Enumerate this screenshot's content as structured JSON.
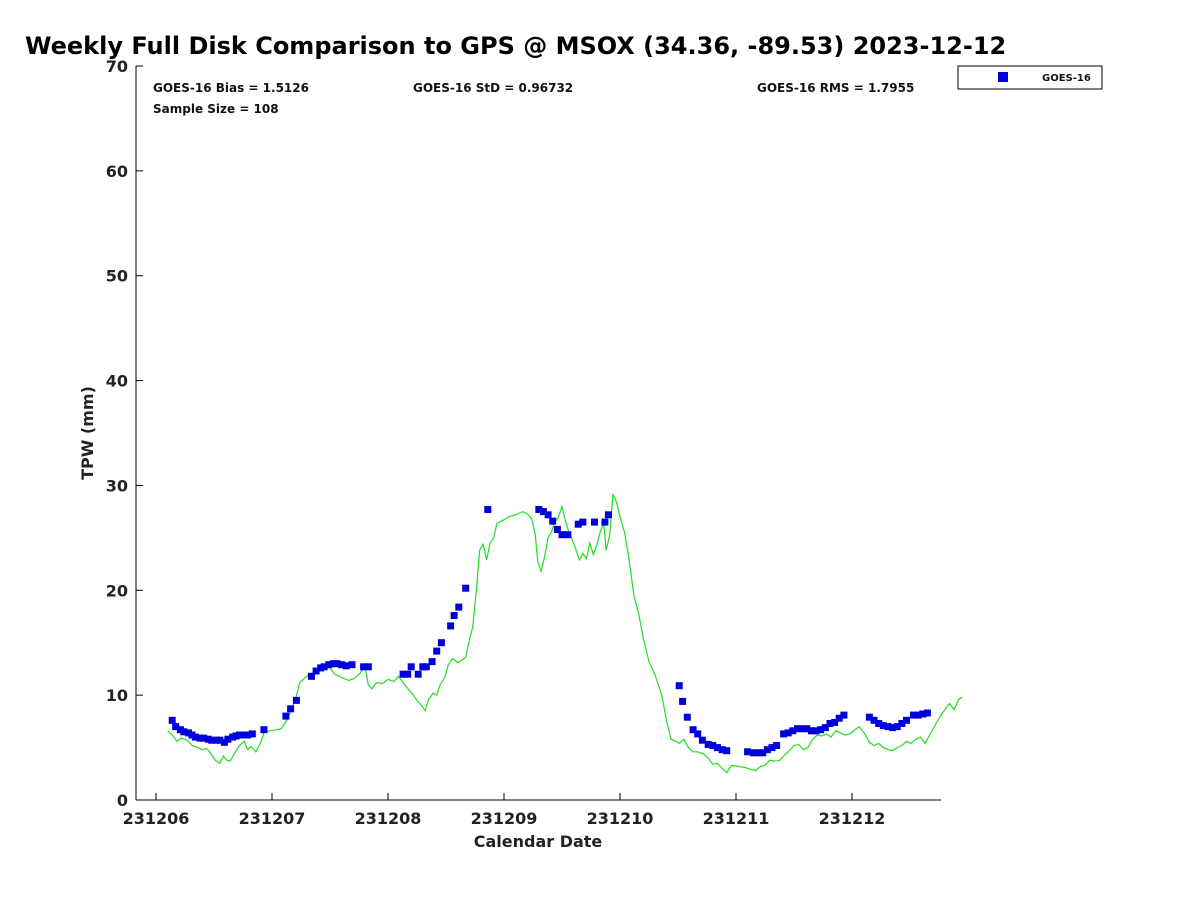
{
  "chart_data": {
    "type": "scatter",
    "title": "Weekly Full Disk Comparison to GPS @ MSOX (34.36, -89.53) 2023-12-12",
    "xlabel": "Calendar Date",
    "ylabel": "TPW (mm)",
    "xlim": [
      0,
      6.95
    ],
    "ylim": [
      0,
      70
    ],
    "x_ticks": [
      {
        "x": 0,
        "label": "231206"
      },
      {
        "x": 1,
        "label": "231207"
      },
      {
        "x": 2,
        "label": "231208"
      },
      {
        "x": 3,
        "label": "231209"
      },
      {
        "x": 4,
        "label": "231210"
      },
      {
        "x": 5,
        "label": "231211"
      },
      {
        "x": 6,
        "label": "231212"
      }
    ],
    "y_ticks": [
      0,
      10,
      20,
      30,
      40,
      50,
      60,
      70
    ],
    "y_tick_labels": [
      "0",
      "10",
      "20",
      "30",
      "40",
      "50",
      "60",
      "70"
    ],
    "grid": false,
    "legend_position": "outside-top-right",
    "stats": {
      "bias": "GOES-16 Bias = 1.5126",
      "std": "GOES-16 StD = 0.96732",
      "rms": "GOES-16 RMS = 1.7955",
      "sample": "Sample Size = 108"
    },
    "series": [
      {
        "name": "GOES-16",
        "marker": "square",
        "color": "#0000dd",
        "points": [
          [
            0.14,
            7.6
          ],
          [
            0.17,
            7.0
          ],
          [
            0.21,
            6.7
          ],
          [
            0.24,
            6.5
          ],
          [
            0.28,
            6.4
          ],
          [
            0.31,
            6.2
          ],
          [
            0.34,
            6.0
          ],
          [
            0.38,
            5.9
          ],
          [
            0.41,
            5.9
          ],
          [
            0.45,
            5.8
          ],
          [
            0.48,
            5.7
          ],
          [
            0.52,
            5.7
          ],
          [
            0.55,
            5.7
          ],
          [
            0.59,
            5.5
          ],
          [
            0.62,
            5.8
          ],
          [
            0.66,
            6.0
          ],
          [
            0.69,
            6.1
          ],
          [
            0.72,
            6.2
          ],
          [
            0.76,
            6.2
          ],
          [
            0.79,
            6.2
          ],
          [
            0.83,
            6.3
          ],
          [
            0.93,
            6.7
          ],
          [
            1.12,
            8.0
          ],
          [
            1.16,
            8.7
          ],
          [
            1.21,
            9.5
          ],
          [
            1.34,
            11.8
          ],
          [
            1.38,
            12.3
          ],
          [
            1.42,
            12.6
          ],
          [
            1.45,
            12.7
          ],
          [
            1.49,
            12.9
          ],
          [
            1.53,
            13.0
          ],
          [
            1.56,
            13.0
          ],
          [
            1.6,
            12.9
          ],
          [
            1.64,
            12.8
          ],
          [
            1.69,
            12.9
          ],
          [
            1.79,
            12.7
          ],
          [
            1.83,
            12.7
          ],
          [
            2.13,
            12.0
          ],
          [
            2.17,
            12.0
          ],
          [
            2.2,
            12.7
          ],
          [
            2.26,
            12.0
          ],
          [
            2.3,
            12.7
          ],
          [
            2.33,
            12.7
          ],
          [
            2.38,
            13.2
          ],
          [
            2.42,
            14.2
          ],
          [
            2.46,
            15.0
          ],
          [
            2.54,
            16.6
          ],
          [
            2.57,
            17.6
          ],
          [
            2.61,
            18.4
          ],
          [
            2.67,
            20.2
          ],
          [
            2.86,
            27.7
          ],
          [
            3.3,
            27.7
          ],
          [
            3.34,
            27.5
          ],
          [
            3.38,
            27.2
          ],
          [
            3.42,
            26.6
          ],
          [
            3.46,
            25.8
          ],
          [
            3.5,
            25.3
          ],
          [
            3.55,
            25.3
          ],
          [
            3.64,
            26.3
          ],
          [
            3.68,
            26.5
          ],
          [
            3.78,
            26.5
          ],
          [
            3.87,
            26.5
          ],
          [
            3.9,
            27.2
          ],
          [
            4.51,
            10.9
          ],
          [
            4.54,
            9.4
          ],
          [
            4.58,
            7.9
          ],
          [
            4.63,
            6.7
          ],
          [
            4.67,
            6.3
          ],
          [
            4.71,
            5.7
          ],
          [
            4.76,
            5.3
          ],
          [
            4.8,
            5.2
          ],
          [
            4.84,
            5.0
          ],
          [
            4.88,
            4.8
          ],
          [
            4.92,
            4.7
          ],
          [
            5.1,
            4.6
          ],
          [
            5.15,
            4.5
          ],
          [
            5.19,
            4.5
          ],
          [
            5.23,
            4.5
          ],
          [
            5.27,
            4.8
          ],
          [
            5.31,
            5.0
          ],
          [
            5.35,
            5.2
          ],
          [
            5.41,
            6.3
          ],
          [
            5.45,
            6.4
          ],
          [
            5.49,
            6.6
          ],
          [
            5.53,
            6.8
          ],
          [
            5.57,
            6.8
          ],
          [
            5.61,
            6.8
          ],
          [
            5.65,
            6.6
          ],
          [
            5.69,
            6.6
          ],
          [
            5.73,
            6.7
          ],
          [
            5.77,
            6.9
          ],
          [
            5.81,
            7.3
          ],
          [
            5.85,
            7.4
          ],
          [
            5.89,
            7.8
          ],
          [
            5.93,
            8.1
          ],
          [
            6.15,
            7.9
          ],
          [
            6.19,
            7.6
          ],
          [
            6.23,
            7.3
          ],
          [
            6.27,
            7.1
          ],
          [
            6.31,
            7.0
          ],
          [
            6.35,
            6.9
          ],
          [
            6.39,
            7.0
          ],
          [
            6.43,
            7.3
          ],
          [
            6.47,
            7.6
          ],
          [
            6.53,
            8.1
          ],
          [
            6.57,
            8.1
          ],
          [
            6.61,
            8.2
          ],
          [
            6.65,
            8.3
          ]
        ]
      },
      {
        "name": "GPS",
        "marker": "line",
        "color": "#22dd22",
        "points": [
          [
            0.1,
            6.6
          ],
          [
            0.14,
            6.2
          ],
          [
            0.18,
            5.6
          ],
          [
            0.22,
            5.9
          ],
          [
            0.27,
            5.7
          ],
          [
            0.31,
            5.2
          ],
          [
            0.36,
            5.0
          ],
          [
            0.4,
            4.8
          ],
          [
            0.44,
            4.9
          ],
          [
            0.48,
            4.3
          ],
          [
            0.51,
            3.8
          ],
          [
            0.55,
            3.5
          ],
          [
            0.58,
            4.2
          ],
          [
            0.61,
            3.8
          ],
          [
            0.64,
            3.7
          ],
          [
            0.68,
            4.5
          ],
          [
            0.72,
            5.2
          ],
          [
            0.76,
            5.6
          ],
          [
            0.79,
            4.8
          ],
          [
            0.82,
            5.1
          ],
          [
            0.86,
            4.6
          ],
          [
            0.9,
            5.4
          ],
          [
            0.93,
            6.4
          ],
          [
            0.98,
            6.6
          ],
          [
            1.04,
            6.7
          ],
          [
            1.08,
            6.8
          ],
          [
            1.12,
            7.5
          ],
          [
            1.16,
            8.4
          ],
          [
            1.2,
            9.5
          ],
          [
            1.24,
            11.2
          ],
          [
            1.29,
            11.7
          ],
          [
            1.33,
            12.0
          ],
          [
            1.37,
            12.2
          ],
          [
            1.42,
            12.5
          ],
          [
            1.46,
            12.8
          ],
          [
            1.5,
            12.6
          ],
          [
            1.54,
            12.0
          ],
          [
            1.58,
            11.8
          ],
          [
            1.62,
            11.6
          ],
          [
            1.66,
            11.4
          ],
          [
            1.71,
            11.6
          ],
          [
            1.76,
            12.1
          ],
          [
            1.8,
            12.8
          ],
          [
            1.83,
            11.0
          ],
          [
            1.86,
            10.6
          ],
          [
            1.9,
            11.2
          ],
          [
            1.95,
            11.1
          ],
          [
            2.0,
            11.5
          ],
          [
            2.05,
            11.3
          ],
          [
            2.09,
            11.8
          ],
          [
            2.13,
            11.2
          ],
          [
            2.18,
            10.5
          ],
          [
            2.22,
            10.0
          ],
          [
            2.25,
            9.5
          ],
          [
            2.29,
            9.0
          ],
          [
            2.32,
            8.5
          ],
          [
            2.35,
            9.6
          ],
          [
            2.39,
            10.2
          ],
          [
            2.42,
            10.0
          ],
          [
            2.45,
            11.0
          ],
          [
            2.49,
            11.7
          ],
          [
            2.52,
            12.9
          ],
          [
            2.56,
            13.5
          ],
          [
            2.6,
            13.1
          ],
          [
            2.63,
            13.3
          ],
          [
            2.67,
            13.6
          ],
          [
            2.7,
            15.2
          ],
          [
            2.73,
            16.5
          ],
          [
            2.76,
            19.8
          ],
          [
            2.79,
            23.8
          ],
          [
            2.82,
            24.4
          ],
          [
            2.85,
            22.9
          ],
          [
            2.88,
            24.5
          ],
          [
            2.91,
            25.0
          ],
          [
            2.94,
            26.4
          ],
          [
            2.98,
            26.6
          ],
          [
            3.04,
            27.0
          ],
          [
            3.1,
            27.2
          ],
          [
            3.16,
            27.5
          ],
          [
            3.2,
            27.3
          ],
          [
            3.24,
            26.8
          ],
          [
            3.27,
            25.3
          ],
          [
            3.29,
            22.8
          ],
          [
            3.32,
            21.8
          ],
          [
            3.35,
            23.2
          ],
          [
            3.38,
            25.0
          ],
          [
            3.41,
            25.6
          ],
          [
            3.44,
            26.5
          ],
          [
            3.47,
            27.0
          ],
          [
            3.5,
            28.0
          ],
          [
            3.53,
            26.6
          ],
          [
            3.56,
            25.5
          ],
          [
            3.59,
            24.8
          ],
          [
            3.62,
            23.9
          ],
          [
            3.65,
            22.9
          ],
          [
            3.68,
            23.5
          ],
          [
            3.71,
            23.0
          ],
          [
            3.74,
            24.5
          ],
          [
            3.77,
            23.4
          ],
          [
            3.8,
            24.3
          ],
          [
            3.83,
            25.6
          ],
          [
            3.86,
            26.4
          ],
          [
            3.88,
            23.8
          ],
          [
            3.91,
            25.2
          ],
          [
            3.94,
            29.2
          ],
          [
            3.97,
            28.4
          ],
          [
            4.0,
            27.0
          ],
          [
            4.04,
            25.5
          ],
          [
            4.08,
            22.8
          ],
          [
            4.12,
            19.5
          ],
          [
            4.16,
            17.8
          ],
          [
            4.2,
            15.5
          ],
          [
            4.25,
            13.2
          ],
          [
            4.3,
            12.0
          ],
          [
            4.36,
            10.0
          ],
          [
            4.4,
            7.6
          ],
          [
            4.44,
            5.8
          ],
          [
            4.48,
            5.6
          ],
          [
            4.51,
            5.4
          ],
          [
            4.55,
            5.8
          ],
          [
            4.59,
            5.0
          ],
          [
            4.63,
            4.6
          ],
          [
            4.67,
            4.6
          ],
          [
            4.72,
            4.4
          ],
          [
            4.76,
            4.0
          ],
          [
            4.8,
            3.4
          ],
          [
            4.84,
            3.5
          ],
          [
            4.88,
            3.0
          ],
          [
            4.92,
            2.6
          ],
          [
            4.96,
            3.3
          ],
          [
            5.02,
            3.2
          ],
          [
            5.08,
            3.1
          ],
          [
            5.13,
            2.9
          ],
          [
            5.17,
            2.8
          ],
          [
            5.21,
            3.2
          ],
          [
            5.25,
            3.3
          ],
          [
            5.29,
            3.8
          ],
          [
            5.33,
            3.7
          ],
          [
            5.38,
            3.8
          ],
          [
            5.42,
            4.3
          ],
          [
            5.46,
            4.7
          ],
          [
            5.5,
            5.2
          ],
          [
            5.54,
            5.3
          ],
          [
            5.58,
            4.8
          ],
          [
            5.62,
            5.0
          ],
          [
            5.66,
            5.8
          ],
          [
            5.7,
            6.2
          ],
          [
            5.74,
            6.1
          ],
          [
            5.78,
            6.3
          ],
          [
            5.82,
            6.0
          ],
          [
            5.86,
            6.6
          ],
          [
            5.9,
            6.4
          ],
          [
            5.94,
            6.2
          ],
          [
            5.98,
            6.3
          ],
          [
            6.06,
            7.0
          ],
          [
            6.11,
            6.3
          ],
          [
            6.15,
            5.5
          ],
          [
            6.19,
            5.2
          ],
          [
            6.23,
            5.4
          ],
          [
            6.27,
            5.0
          ],
          [
            6.31,
            4.8
          ],
          [
            6.35,
            4.7
          ],
          [
            6.39,
            5.0
          ],
          [
            6.43,
            5.2
          ],
          [
            6.47,
            5.6
          ],
          [
            6.51,
            5.4
          ],
          [
            6.55,
            5.8
          ],
          [
            6.59,
            6.0
          ],
          [
            6.63,
            5.4
          ],
          [
            6.67,
            6.2
          ],
          [
            6.72,
            7.2
          ],
          [
            6.76,
            8.0
          ],
          [
            6.8,
            8.6
          ],
          [
            6.84,
            9.2
          ],
          [
            6.88,
            8.6
          ],
          [
            6.92,
            9.6
          ],
          [
            6.95,
            9.8
          ]
        ]
      }
    ]
  }
}
